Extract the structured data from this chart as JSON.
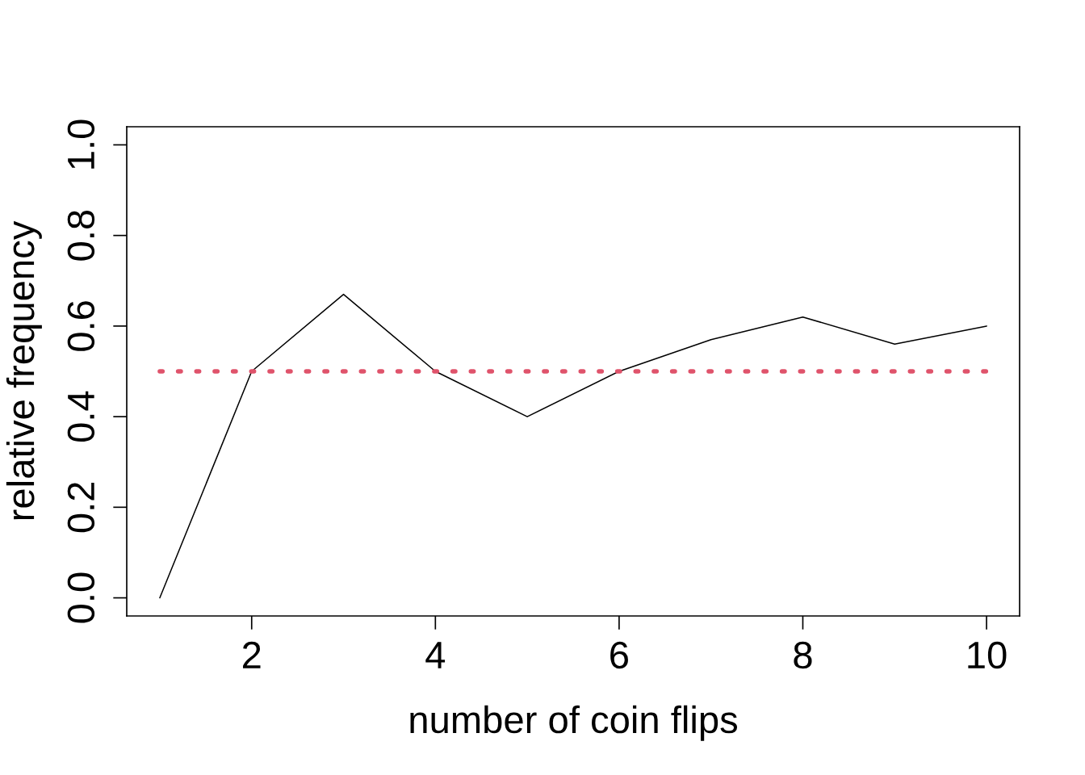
{
  "chart_data": {
    "type": "line",
    "xlabel": "number of coin flips",
    "ylabel": "relative frequency",
    "x": [
      1,
      2,
      3,
      4,
      5,
      6,
      7,
      8,
      9,
      10
    ],
    "series": [
      {
        "color": "#000000",
        "values": [
          0,
          0.5,
          0.67,
          0.5,
          0.4,
          0.5,
          0.57,
          0.62,
          0.56,
          0.6
        ]
      },
      {
        "x": [
          1,
          10
        ],
        "values": [
          0.5,
          0.5
        ],
        "color": "#df536b",
        "line_style": "dotted"
      }
    ],
    "xlim": [
      0.64,
      10.36
    ],
    "ylim": [
      -0.04,
      1.04
    ],
    "xticks": [
      2,
      4,
      6,
      8,
      10
    ],
    "yticks": [
      {
        "value": 0,
        "label": "0.0"
      },
      0.2,
      0.4,
      0.6,
      0.8,
      {
        "value": 1,
        "label": "1.0"
      }
    ]
  }
}
